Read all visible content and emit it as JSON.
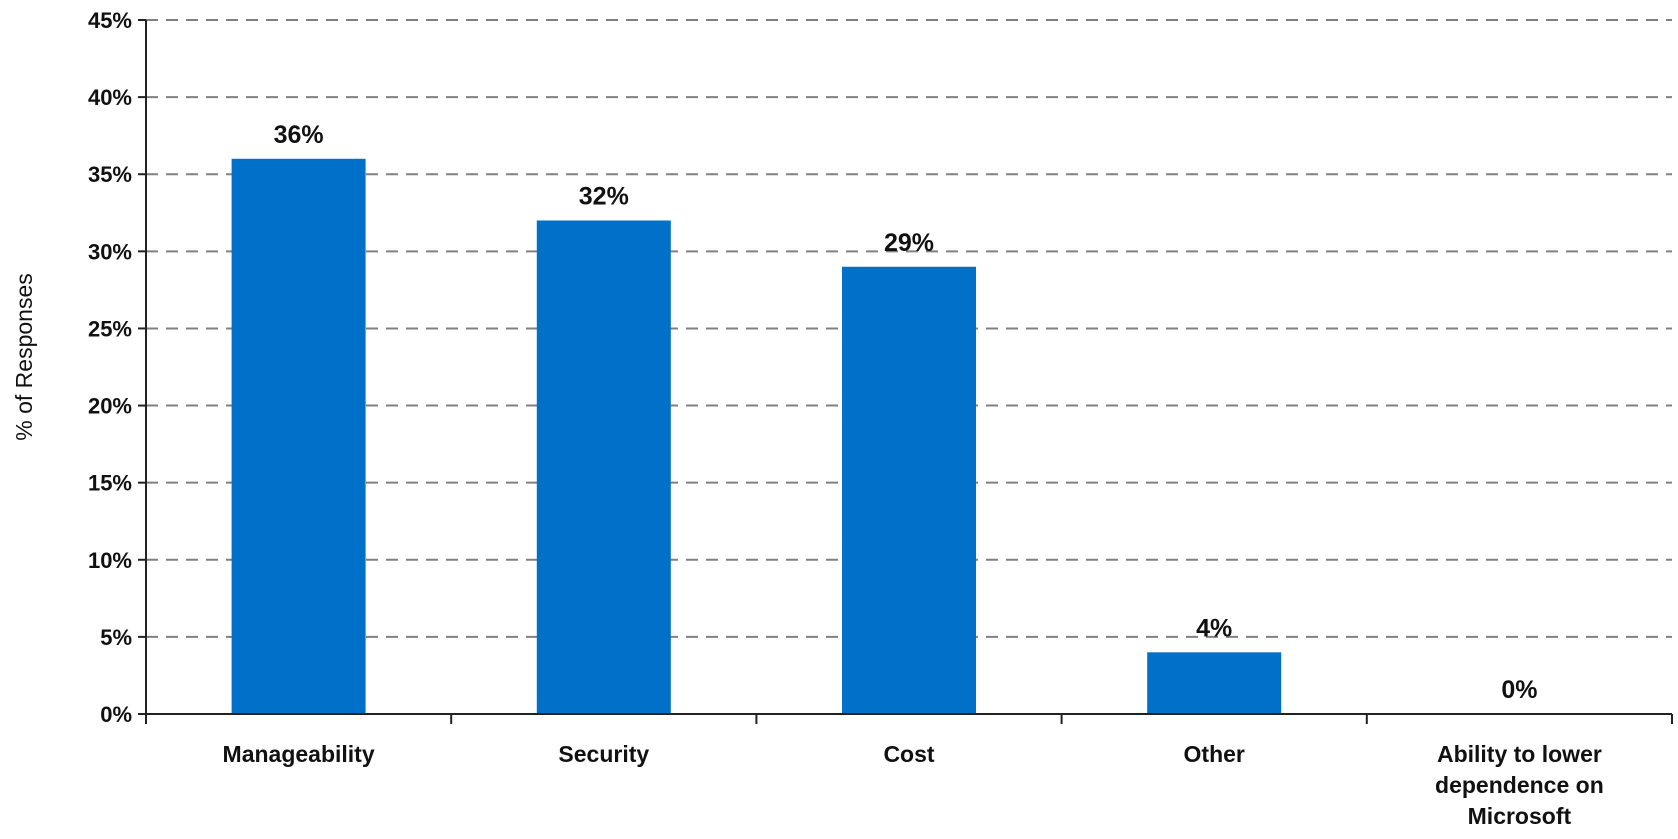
{
  "chart_data": {
    "type": "bar",
    "title": "",
    "xlabel": "",
    "ylabel": "% of Responses",
    "ylim": [
      0,
      45
    ],
    "y_tick_step": 5,
    "y_tick_suffix": "%",
    "grid": true,
    "grid_style": "dashed",
    "bar_color": "#0070C8",
    "categories": [
      [
        "Manageability"
      ],
      [
        "Security"
      ],
      [
        "Cost"
      ],
      [
        "Other"
      ],
      [
        "Ability to lower",
        "dependence on",
        "Microsoft"
      ]
    ],
    "values": [
      36,
      32,
      29,
      4,
      0
    ],
    "data_labels": [
      "36%",
      "32%",
      "29%",
      "4%",
      "0%"
    ]
  }
}
